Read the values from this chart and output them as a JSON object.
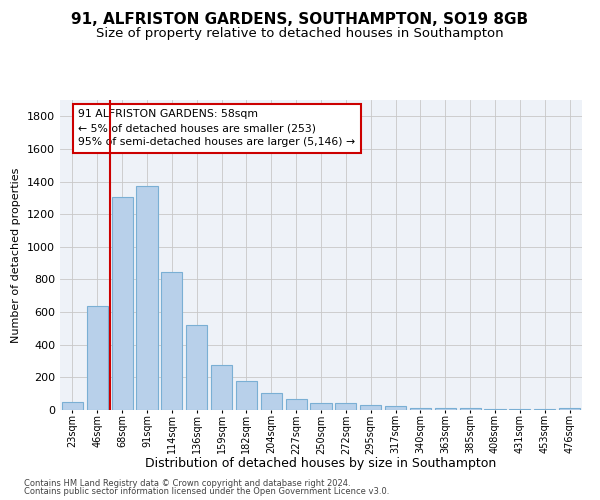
{
  "title1": "91, ALFRISTON GARDENS, SOUTHAMPTON, SO19 8GB",
  "title2": "Size of property relative to detached houses in Southampton",
  "xlabel": "Distribution of detached houses by size in Southampton",
  "ylabel": "Number of detached properties",
  "bar_labels": [
    "23sqm",
    "46sqm",
    "68sqm",
    "91sqm",
    "114sqm",
    "136sqm",
    "159sqm",
    "182sqm",
    "204sqm",
    "227sqm",
    "250sqm",
    "272sqm",
    "295sqm",
    "317sqm",
    "340sqm",
    "363sqm",
    "385sqm",
    "408sqm",
    "431sqm",
    "453sqm",
    "476sqm"
  ],
  "bar_values": [
    50,
    640,
    1305,
    1375,
    845,
    520,
    275,
    175,
    105,
    65,
    40,
    40,
    30,
    25,
    15,
    10,
    10,
    5,
    5,
    5,
    15
  ],
  "bar_color": "#b8d0ea",
  "bar_edgecolor": "#7aafd4",
  "ylim": [
    0,
    1900
  ],
  "yticks": [
    0,
    200,
    400,
    600,
    800,
    1000,
    1200,
    1400,
    1600,
    1800
  ],
  "vline_color": "#cc0000",
  "annotation_box_text": "91 ALFRISTON GARDENS: 58sqm\n← 5% of detached houses are smaller (253)\n95% of semi-detached houses are larger (5,146) →",
  "footer1": "Contains HM Land Registry data © Crown copyright and database right 2024.",
  "footer2": "Contains public sector information licensed under the Open Government Licence v3.0.",
  "background_color": "#eef2f8",
  "grid_color": "#c8c8c8"
}
